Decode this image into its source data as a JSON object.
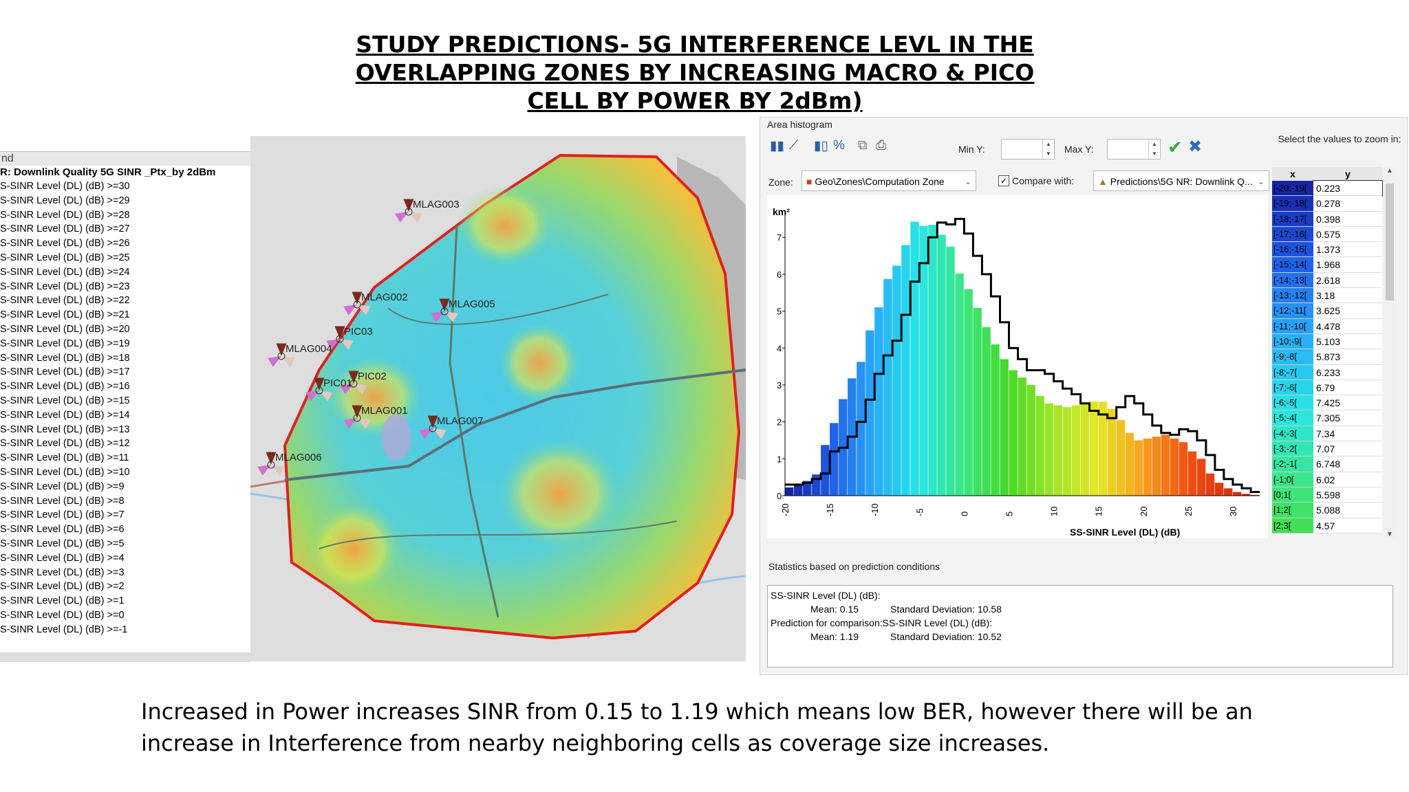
{
  "title_lines": [
    "STUDY PREDICTIONS- 5G INTERFERENCE LEVL IN THE",
    "OVERLAPPING ZONES BY INCREASING  MACRO & PICO",
    "CELL BY POWER  BY 2dBm)"
  ],
  "caption_lines": [
    "Increased in Power increases  SINR from 0.15 to 1.19 which means low BER,  however there will be an",
    "increase in Interference from nearby neighboring cells  as coverage size increases."
  ],
  "legend": {
    "header": "nd",
    "title": "R: Downlink Quality 5G SINR _Ptx_by 2dBm",
    "rows": [
      "S-SINR Level (DL) (dB) >=30",
      "S-SINR Level (DL) (dB) >=29",
      "S-SINR Level (DL) (dB) >=28",
      "S-SINR Level (DL) (dB) >=27",
      "S-SINR Level (DL) (dB) >=26",
      "S-SINR Level (DL) (dB) >=25",
      "S-SINR Level (DL) (dB) >=24",
      "S-SINR Level (DL) (dB) >=23",
      "S-SINR Level (DL) (dB) >=22",
      "S-SINR Level (DL) (dB) >=21",
      "S-SINR Level (DL) (dB) >=20",
      "S-SINR Level (DL) (dB) >=19",
      "S-SINR Level (DL) (dB) >=18",
      "S-SINR Level (DL) (dB) >=17",
      "S-SINR Level (DL) (dB) >=16",
      "S-SINR Level (DL) (dB) >=15",
      "S-SINR Level (DL) (dB) >=14",
      "S-SINR Level (DL) (dB) >=13",
      "S-SINR Level (DL) (dB) >=12",
      "S-SINR Level (DL) (dB) >=11",
      "S-SINR Level (DL) (dB) >=10",
      "S-SINR Level (DL) (dB) >=9",
      "S-SINR Level (DL) (dB) >=8",
      "S-SINR Level (DL) (dB) >=7",
      "S-SINR Level (DL) (dB) >=6",
      "S-SINR Level (DL) (dB) >=5",
      "S-SINR Level (DL) (dB) >=4",
      "S-SINR Level (DL) (dB) >=3",
      "S-SINR Level (DL) (dB) >=2",
      "S-SINR Level (DL) (dB) >=1",
      "S-SINR Level (DL) (dB) >=0",
      "S-SINR Level (DL) (dB) >=-1"
    ]
  },
  "map": {
    "sites": [
      "MLAG003",
      "MLAG002",
      "MLAG005",
      "PIC03",
      "MLAG004",
      "PIC02",
      "PIC01",
      "MLAG001",
      "MLAG007",
      "MLAG006"
    ],
    "zone_color": "#e02020"
  },
  "histogram_window": {
    "section_title": "Area histogram",
    "toolbar_icons": [
      "bar-chart-icon",
      "line-chart-icon",
      "cumulative-icon",
      "percent-icon",
      "copy-icon",
      "print-icon"
    ],
    "toolbar_percent": "%",
    "min_y_label": "Min Y:",
    "max_y_label": "Max Y:",
    "min_y_value": "",
    "max_y_value": "",
    "apply_icon": "✔",
    "cancel_icon": "✖",
    "zoom_hint": "Select the values to zoom in:",
    "zone_label": "Zone:",
    "zone_value": "Geo\\Zones\\Computation Zone",
    "compare_label": "Compare with:",
    "compare_checked": true,
    "compare_value": "Predictions\\5G NR: Downlink Q...",
    "table_header_x": "x",
    "table_header_y": "y",
    "table_rows": [
      {
        "x": "[-20;-19[",
        "y": "0.223"
      },
      {
        "x": "[-19;-18[",
        "y": "0.278"
      },
      {
        "x": "[-18;-17[",
        "y": "0.398"
      },
      {
        "x": "[-17;-16[",
        "y": "0.575"
      },
      {
        "x": "[-16;-15[",
        "y": "1.373"
      },
      {
        "x": "[-15;-14[",
        "y": "1.968"
      },
      {
        "x": "[-14;-13[",
        "y": "2.618"
      },
      {
        "x": "[-13;-12[",
        "y": "3.18"
      },
      {
        "x": "[-12;-11[",
        "y": "3.625"
      },
      {
        "x": "[-11;-10[",
        "y": "4.478"
      },
      {
        "x": "[-10;-9[",
        "y": "5.103"
      },
      {
        "x": "[-9;-8[",
        "y": "5.873"
      },
      {
        "x": "[-8;-7[",
        "y": "6.233"
      },
      {
        "x": "[-7;-6[",
        "y": "6.79"
      },
      {
        "x": "[-6;-5[",
        "y": "7.425"
      },
      {
        "x": "[-5;-4[",
        "y": "7.305"
      },
      {
        "x": "[-4;-3[",
        "y": "7.34"
      },
      {
        "x": "[-3;-2[",
        "y": "7.07"
      },
      {
        "x": "[-2;-1[",
        "y": "6.748"
      },
      {
        "x": "[-1;0[",
        "y": "6.02"
      },
      {
        "x": "[0;1[",
        "y": "5.598"
      },
      {
        "x": "[1;2[",
        "y": "5.088"
      },
      {
        "x": "[2;3[",
        "y": "4.57"
      }
    ],
    "stats_section_title": "Statistics based on prediction conditions",
    "stats": {
      "line1": "SS-SINR Level (DL) (dB):",
      "mean1": "Mean: 0.15",
      "sd1": "Standard Deviation: 10.58",
      "line2": "Prediction for comparison:SS-SINR Level (DL) (dB):",
      "mean2": "Mean: 1.19",
      "sd2": "Standard Deviation: 10.52"
    }
  },
  "chart_data": {
    "type": "bar",
    "ylabel": "km²",
    "xlabel": "SS-SINR Level (DL) (dB)",
    "ylim": [
      0,
      7.6
    ],
    "xlim": [
      -20,
      33
    ],
    "yticks": [
      0,
      1,
      2,
      3,
      4,
      5,
      6,
      7
    ],
    "xticks": [
      -20,
      -15,
      -10,
      -5,
      0,
      5,
      10,
      15,
      20,
      25,
      30
    ],
    "bins": [
      -20,
      -19,
      -18,
      -17,
      -16,
      -15,
      -14,
      -13,
      -12,
      -11,
      -10,
      -9,
      -8,
      -7,
      -6,
      -5,
      -4,
      -3,
      -2,
      -1,
      0,
      1,
      2,
      3,
      4,
      5,
      6,
      7,
      8,
      9,
      10,
      11,
      12,
      13,
      14,
      15,
      16,
      17,
      18,
      19,
      20,
      21,
      22,
      23,
      24,
      25,
      26,
      27,
      28,
      29,
      30,
      31,
      32
    ],
    "series": [
      {
        "values": [
          0.223,
          0.278,
          0.398,
          0.575,
          1.373,
          1.968,
          2.618,
          3.18,
          3.625,
          4.478,
          5.103,
          5.873,
          6.233,
          6.79,
          7.425,
          7.305,
          7.34,
          7.07,
          6.748,
          6.02,
          5.598,
          5.088,
          4.57,
          4.1,
          3.7,
          3.4,
          3.2,
          3.0,
          2.7,
          2.5,
          2.45,
          2.4,
          2.45,
          2.5,
          2.55,
          2.55,
          2.35,
          2.05,
          1.7,
          1.5,
          1.55,
          1.6,
          1.65,
          1.55,
          1.45,
          1.2,
          1.0,
          0.6,
          0.35,
          0.2,
          0.1,
          0.05,
          0.02
        ]
      },
      {
        "values": [
          0.3,
          0.3,
          0.35,
          0.45,
          0.6,
          1.2,
          1.3,
          1.6,
          2.0,
          2.6,
          3.3,
          3.8,
          4.2,
          4.9,
          5.8,
          6.3,
          7.0,
          7.4,
          7.35,
          7.5,
          7.1,
          6.5,
          6.0,
          5.4,
          4.7,
          4.0,
          3.7,
          3.4,
          3.4,
          3.3,
          3.1,
          2.9,
          2.75,
          2.5,
          2.3,
          2.2,
          2.1,
          2.4,
          2.7,
          2.5,
          2.2,
          1.9,
          1.7,
          1.65,
          1.8,
          1.75,
          1.5,
          1.1,
          0.7,
          0.45,
          0.3,
          0.2,
          0.1
        ]
      }
    ]
  }
}
